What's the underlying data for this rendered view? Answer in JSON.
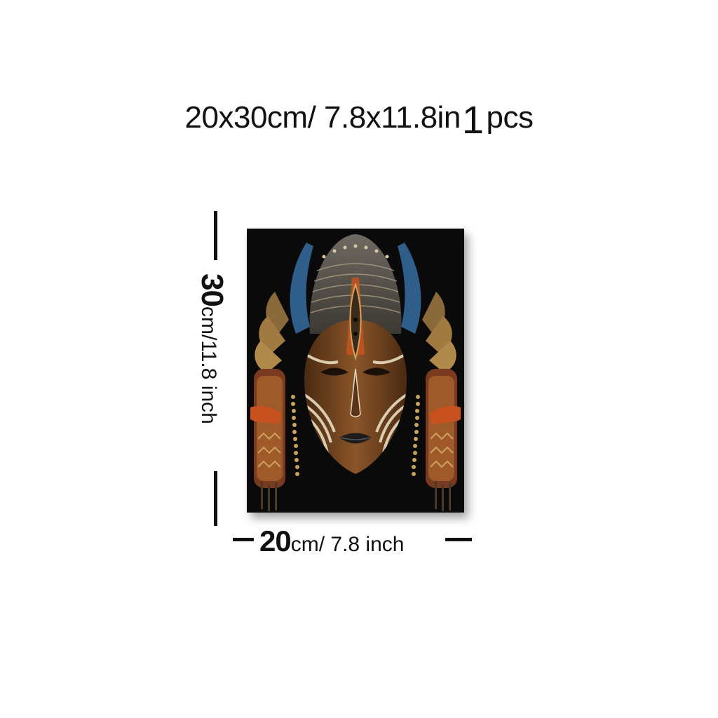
{
  "header": {
    "size_text": "20x30cm/ 7.8x11.8in",
    "quantity": "1",
    "quantity_unit": "pcs"
  },
  "height_dimension": {
    "value": "30",
    "unit_text": "cm/11.8 inch"
  },
  "width_dimension": {
    "value": "20",
    "unit_text": "cm/ 7.8 inch"
  },
  "artwork": {
    "subject": "african-tribal-mask",
    "colors": {
      "background": "#0a0a0a",
      "wood": "#7a4a22",
      "stripe_light": "#e8dcc0",
      "accent_orange": "#c8521f",
      "accent_blue": "#2f5e8a",
      "gold": "#c9a45a"
    }
  }
}
